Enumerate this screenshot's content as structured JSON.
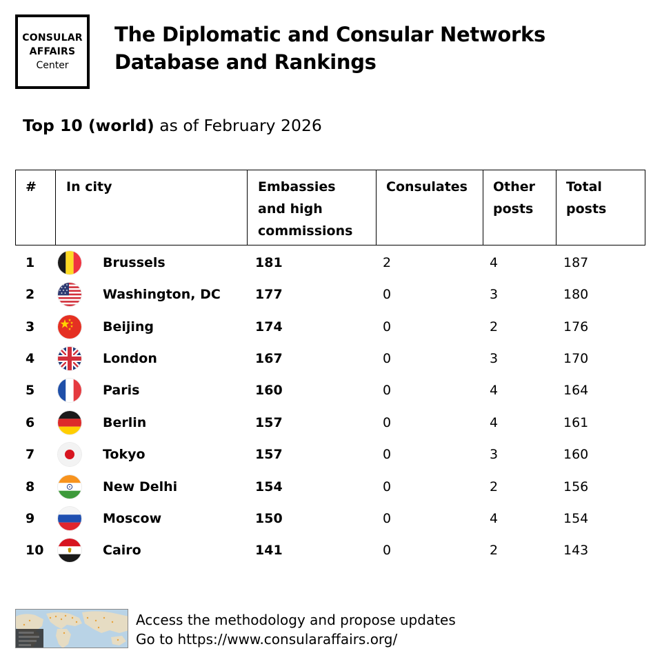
{
  "logo": {
    "line1": "CONSULAR",
    "line2": "AFFAIRS",
    "line3": "Center"
  },
  "title": {
    "line1": "The Diplomatic and Consular Networks",
    "line2": "Database and Rankings"
  },
  "subtitle": {
    "bold": "Top 10 (world)",
    "rest": " as of February 2026"
  },
  "table": {
    "headers": {
      "rank": "#",
      "city": "In city",
      "embassies": [
        "Embassies",
        "and high",
        "commissions"
      ],
      "consulates": "Consulates",
      "other": [
        "Other",
        "posts"
      ],
      "total": [
        "Total",
        "posts"
      ]
    },
    "rows": [
      {
        "rank": "1",
        "flag": "belgium-flag-icon",
        "city": "Brussels",
        "embassies": "181",
        "consulates": "2",
        "other": "4",
        "total": "187"
      },
      {
        "rank": "2",
        "flag": "usa-flag-icon",
        "city": "Washington, DC",
        "embassies": "177",
        "consulates": "0",
        "other": "3",
        "total": "180"
      },
      {
        "rank": "3",
        "flag": "china-flag-icon",
        "city": "Beijing",
        "embassies": "174",
        "consulates": "0",
        "other": "2",
        "total": "176"
      },
      {
        "rank": "4",
        "flag": "uk-flag-icon",
        "city": "London",
        "embassies": "167",
        "consulates": "0",
        "other": "3",
        "total": "170"
      },
      {
        "rank": "5",
        "flag": "france-flag-icon",
        "city": "Paris",
        "embassies": "160",
        "consulates": "0",
        "other": "4",
        "total": "164"
      },
      {
        "rank": "6",
        "flag": "germany-flag-icon",
        "city": "Berlin",
        "embassies": "157",
        "consulates": "0",
        "other": "4",
        "total": "161"
      },
      {
        "rank": "7",
        "flag": "japan-flag-icon",
        "city": "Tokyo",
        "embassies": "157",
        "consulates": "0",
        "other": "3",
        "total": "160"
      },
      {
        "rank": "8",
        "flag": "india-flag-icon",
        "city": "New Delhi",
        "embassies": "154",
        "consulates": "0",
        "other": "2",
        "total": "156"
      },
      {
        "rank": "9",
        "flag": "russia-flag-icon",
        "city": "Moscow",
        "embassies": "150",
        "consulates": "0",
        "other": "4",
        "total": "154"
      },
      {
        "rank": "10",
        "flag": "egypt-flag-icon",
        "city": "Cairo",
        "embassies": "141",
        "consulates": "0",
        "other": "2",
        "total": "143"
      }
    ]
  },
  "footer": {
    "line1": "Access the methodology and propose updates",
    "line2": "Go to https://www.consularaffairs.org/",
    "thumbnail_icon": "world-map-thumbnail-icon"
  }
}
